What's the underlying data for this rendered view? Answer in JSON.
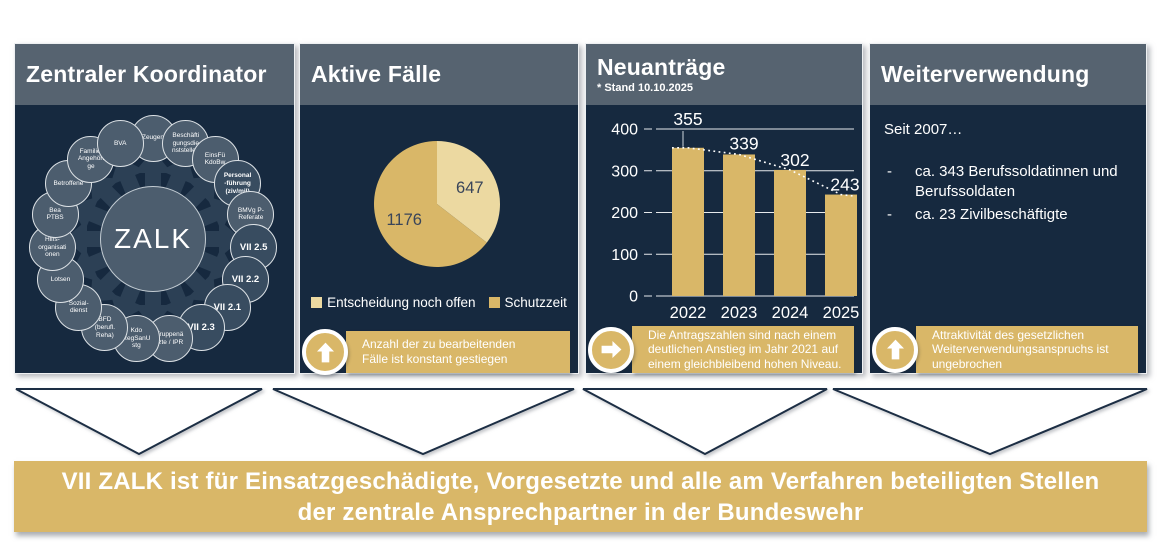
{
  "colors": {
    "panel_navy": "#16293f",
    "header_slate": "#566370",
    "accent_gold": "#d9b768",
    "pale_gold": "#ecd9a1",
    "circle_slate": "#4c5d6e",
    "circle_dark": "#384c60",
    "burst_arrow": "#2c4055",
    "pie_label_text": "#39455a"
  },
  "panels": [
    {
      "id": "zentraler-koordinator",
      "title": "Zentraler Koordinator",
      "hub_label": "ZALK",
      "satellites": [
        {
          "label": "Zeugen"
        },
        {
          "label": "Beschäfti\ngungsdie\nnststellen"
        },
        {
          "label": "EinsFü\nKdoBw"
        },
        {
          "label": "Personal\n-führung\n(ziv/mil)",
          "bold": true,
          "dark": true
        },
        {
          "label": "BMVg P-\nReferate"
        },
        {
          "label": "VII 2.5",
          "vii": true,
          "dark": true
        },
        {
          "label": "VII 2.2",
          "vii": true,
          "dark": true
        },
        {
          "label": "VII 2.1",
          "vii": true,
          "dark": true
        },
        {
          "label": "VII 2.3",
          "vii": true,
          "dark": true
        },
        {
          "label": "Truppenä\nrzte / IPR"
        },
        {
          "label": "Kdo\nRegSanU\nstg"
        },
        {
          "label": "BFD\n(berufl.\nReha)"
        },
        {
          "label": "Sozial-\ndienst"
        },
        {
          "label": "Lotsen"
        },
        {
          "label": "Hilfs-\norganisati\nonen"
        },
        {
          "label": "Bea\nPTBS"
        },
        {
          "label": "Betroffene"
        },
        {
          "label": "Familie,\nAngehöri\nge"
        },
        {
          "label": "BVA"
        }
      ]
    },
    {
      "id": "aktive-faelle",
      "title": "Aktive Fälle",
      "callout": {
        "icon": "arrow-up-icon",
        "text": "Anzahl der zu bearbeitenden Fälle ist konstant gestiegen"
      }
    },
    {
      "id": "neuantraege",
      "title": "Neuanträge",
      "subtitle": "* Stand 10.10.2025",
      "callout": {
        "icon": "arrow-right-icon",
        "text": "Die Antragszahlen sind nach einem deutlichen Anstieg im Jahr 2021 auf einem gleichbleibend hohen Niveau."
      }
    },
    {
      "id": "weiterverwendung",
      "title": "Weiterverwendung",
      "intro": "Seit 2007…",
      "bullets": [
        "ca. 343 Berufssoldatinnen und Berufssoldaten",
        "ca. 23 Zivilbeschäftigte"
      ],
      "callout": {
        "icon": "arrow-up-icon",
        "text": "Attraktivität des gesetzlichen Weiterverwendungsanspruchs ist ungebrochen"
      }
    }
  ],
  "chart_data": [
    {
      "type": "pie",
      "title": "Aktive Fälle",
      "labels": [
        "Entscheidung noch offen",
        "Schutzzeit"
      ],
      "values": [
        647,
        1176
      ],
      "colors": [
        "#ecd9a1",
        "#d9b768"
      ],
      "start_angle": "12 o'clock, clockwise",
      "legend_position": "bottom"
    },
    {
      "type": "bar",
      "title": "Neuanträge",
      "annotation": "* Stand 10.10.2025",
      "categories": [
        "2022",
        "2023",
        "2024",
        "2025"
      ],
      "values": [
        355,
        339,
        302,
        243
      ],
      "xlabel": "",
      "ylabel": "",
      "ylim": [
        0,
        400
      ],
      "yticks": [
        0,
        100,
        200,
        300,
        400
      ],
      "grid": true,
      "bar_color": "#d9b768",
      "trendline": "white dotted line declining across bar tops"
    }
  ],
  "banner": {
    "line1": "VII ZALK ist für Einsatzgeschädigte, Vorgesetzte und alle am Verfahren beteiligten Stellen",
    "line2": "der zentrale Ansprechpartner in der Bundeswehr"
  }
}
